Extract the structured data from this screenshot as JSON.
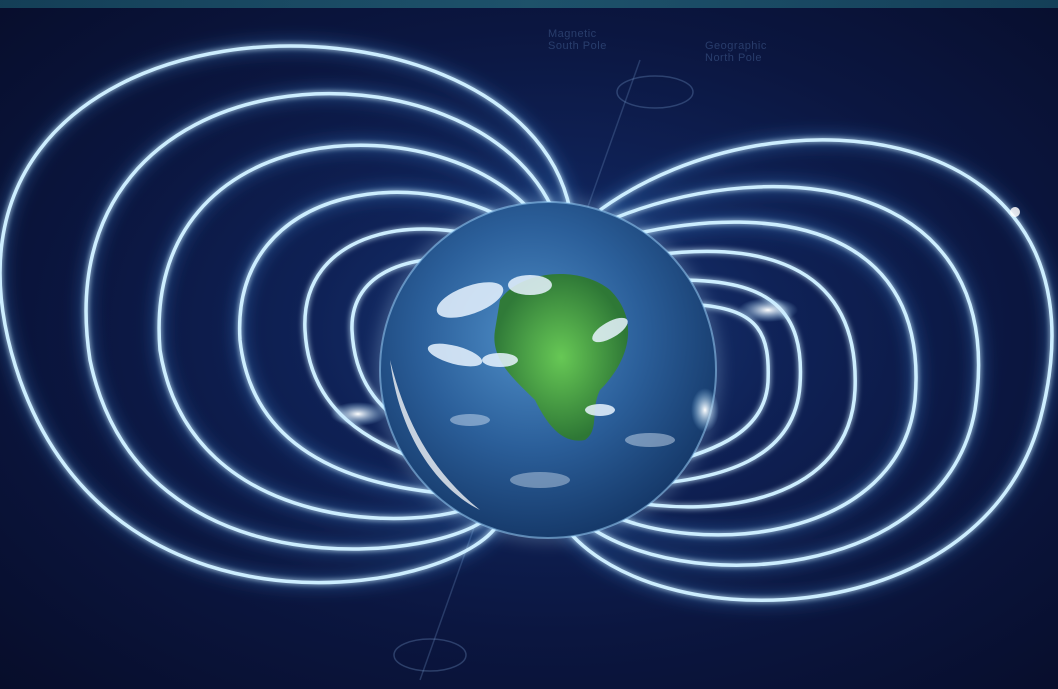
{
  "image": {
    "subject": "earth-magnetic-field-illustration",
    "colors": {
      "background": "#0b1640",
      "field_line": "#bfe6ff",
      "field_glow": "#4aa8ff",
      "ocean": "#2f6fae",
      "land": "#46a83a",
      "cloud": "#e8f4ff"
    }
  },
  "labels": {
    "magnetic_pole": "Magnetic\nSouth Pole",
    "geographic_pole": "Geographic\nNorth Pole"
  }
}
